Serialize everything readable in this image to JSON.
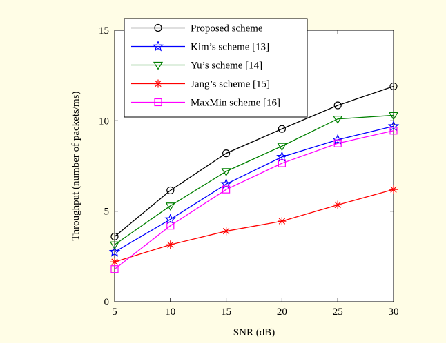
{
  "chart_data": {
    "type": "line",
    "xlabel": "SNR (dB)",
    "ylabel": "Throughput (number of packets/ms)",
    "x": [
      5,
      10,
      15,
      20,
      25,
      30
    ],
    "xlim": [
      5,
      30
    ],
    "ylim": [
      0,
      15
    ],
    "xticks": [
      5,
      10,
      15,
      20,
      25,
      30
    ],
    "yticks": [
      0,
      5,
      10,
      15
    ],
    "grid": false,
    "legend_position": "top-left",
    "series": [
      {
        "name": "Proposed scheme",
        "color": "#000000",
        "marker": "circle",
        "values": [
          3.6,
          6.15,
          8.2,
          9.55,
          10.85,
          11.9
        ]
      },
      {
        "name": "Kim’s scheme [13]",
        "color": "#0000ff",
        "marker": "star",
        "values": [
          2.75,
          4.55,
          6.5,
          8.0,
          8.95,
          9.7
        ]
      },
      {
        "name": "Yu’s scheme [14]",
        "color": "#008000",
        "marker": "triangle-down",
        "values": [
          3.15,
          5.3,
          7.2,
          8.6,
          10.1,
          10.3
        ]
      },
      {
        "name": "Jang’s scheme [15]",
        "color": "#ff0000",
        "marker": "asterisk",
        "values": [
          2.2,
          3.15,
          3.9,
          4.45,
          5.35,
          6.2
        ]
      },
      {
        "name": "MaxMin scheme [16]",
        "color": "#ff00ff",
        "marker": "square",
        "values": [
          1.8,
          4.2,
          6.2,
          7.65,
          8.75,
          9.45
        ]
      }
    ]
  }
}
